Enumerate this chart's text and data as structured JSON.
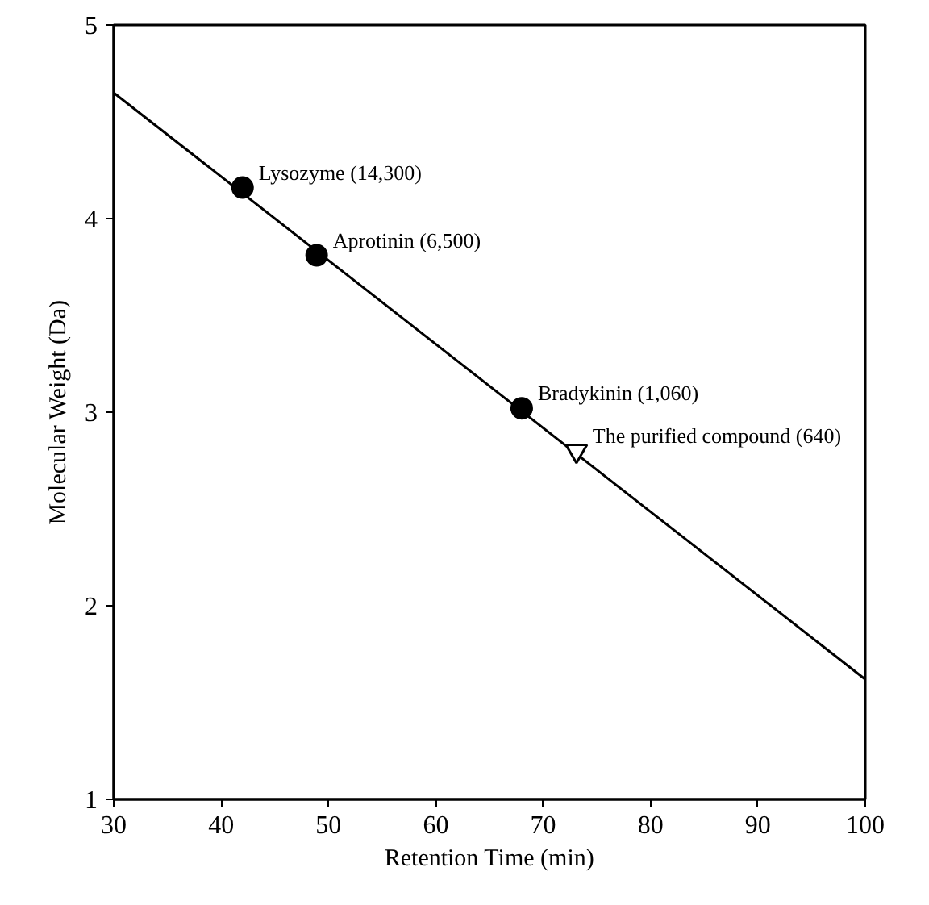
{
  "chart_data": {
    "type": "scatter",
    "xlabel": "Retention Time (min)",
    "ylabel": "Molecular Weight (Da)",
    "xlim": [
      30,
      100
    ],
    "xticks": [
      30,
      40,
      50,
      60,
      70,
      80,
      90,
      100
    ],
    "ylim": [
      1,
      5
    ],
    "yticks": [
      1,
      2,
      3,
      4,
      5
    ],
    "series": [
      {
        "type": "line",
        "color": "#000000",
        "x": [
          30,
          100
        ],
        "values": [
          4.65,
          1.62
        ],
        "marker": "none"
      },
      {
        "color": "#000000",
        "x": [
          42.0,
          48.9,
          68.0
        ],
        "values": [
          4.16,
          3.81,
          3.02
        ],
        "marker": "circle"
      },
      {
        "color": "#000000",
        "x": [
          73.1
        ],
        "values": [
          2.8
        ],
        "marker": "triangle"
      }
    ],
    "annotations": [
      {
        "text": "Lysozyme (14,300)",
        "x": 42.0,
        "y": 4.16
      },
      {
        "text": "Aprotinin (6,500)",
        "x": 48.9,
        "y": 3.81
      },
      {
        "text": "Bradykinin (1,060)",
        "x": 68.0,
        "y": 3.02
      },
      {
        "text": "The purified compound (640)",
        "x": 73.1,
        "y": 2.8
      }
    ],
    "grid": false
  }
}
